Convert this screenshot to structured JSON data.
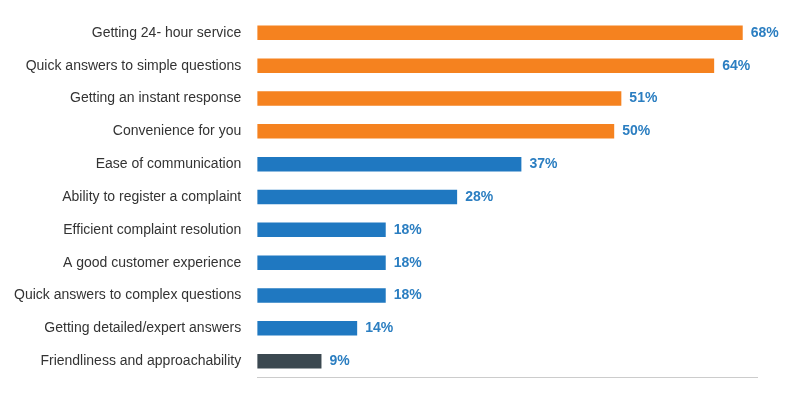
{
  "chart_data": {
    "type": "bar",
    "orientation": "horizontal",
    "categories": [
      "Getting 24- hour service",
      "Quick answers to simple questions",
      "Getting an instant response",
      "Convenience for you",
      "Ease of communication",
      "Ability to register a complaint",
      "Efficient complaint resolution",
      "A good customer experience",
      "Quick answers to complex questions",
      "Getting detailed/expert answers",
      "Friendliness and approachability"
    ],
    "values": [
      68,
      64,
      51,
      50,
      37,
      28,
      18,
      18,
      18,
      14,
      9
    ],
    "value_labels": [
      "68%",
      "64%",
      "51%",
      "50%",
      "37%",
      "28%",
      "18%",
      "18%",
      "18%",
      "14%",
      "9%"
    ],
    "colors": [
      "#f5821f",
      "#f5821f",
      "#f5821f",
      "#f5821f",
      "#1f78c1",
      "#1f78c1",
      "#1f78c1",
      "#1f78c1",
      "#1f78c1",
      "#1f78c1",
      "#3b4850"
    ],
    "xlim": [
      0,
      70
    ],
    "xticks": [],
    "grid": false,
    "data_labels": true,
    "tick_labels": "y"
  }
}
